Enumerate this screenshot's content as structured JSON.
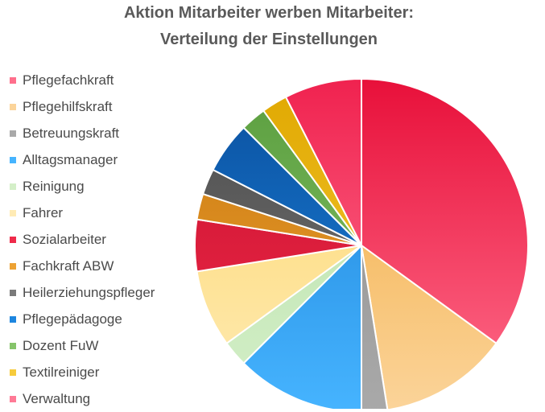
{
  "chart_data": {
    "type": "pie",
    "title": [
      "Aktion Mitarbeiter werben Mitarbeiter:",
      "Verteilung der Einstellungen"
    ],
    "legend_position": "left",
    "slices": [
      {
        "label": "Pflegefachkraft",
        "value": 14,
        "color_top": "#e8103a",
        "color_bottom": "#ff6f8c"
      },
      {
        "label": "Pflegehilfskraft",
        "value": 5,
        "color_top": "#f2a93b",
        "color_bottom": "#fbd49a"
      },
      {
        "label": "Betreuungskraft",
        "value": 1,
        "color_top": "#8e8e8e",
        "color_bottom": "#a9a9a9"
      },
      {
        "label": "Alltagsmanager",
        "value": 5,
        "color_top": "#1a7fd6",
        "color_bottom": "#46b4ff"
      },
      {
        "label": "Reinigung",
        "value": 1,
        "color_top": "#b6e0a8",
        "color_bottom": "#d4efc8"
      },
      {
        "label": "Fahrer",
        "value": 3,
        "color_top": "#fcd66a",
        "color_bottom": "#ffebb5"
      },
      {
        "label": "Sozialarbeiter",
        "value": 2,
        "color_top": "#c8102e",
        "color_bottom": "#ef2b4a"
      },
      {
        "label": "Fachkraft ABW",
        "value": 1,
        "color_top": "#c9780f",
        "color_bottom": "#eda233"
      },
      {
        "label": "Heilerziehungspfleger",
        "value": 1,
        "color_top": "#4a4a4a",
        "color_bottom": "#7a7a7a"
      },
      {
        "label": "Pflegepädagoge",
        "value": 2,
        "color_top": "#0a4f9e",
        "color_bottom": "#1d86df"
      },
      {
        "label": "Dozent FuW",
        "value": 1,
        "color_top": "#5b9e3f",
        "color_bottom": "#86c46a"
      },
      {
        "label": "Textilreiniger",
        "value": 1,
        "color_top": "#e0a800",
        "color_bottom": "#f6cb3c"
      },
      {
        "label": "Verwaltung",
        "value": 3,
        "color_top": "#f0224f",
        "color_bottom": "#ff7a96"
      }
    ]
  }
}
